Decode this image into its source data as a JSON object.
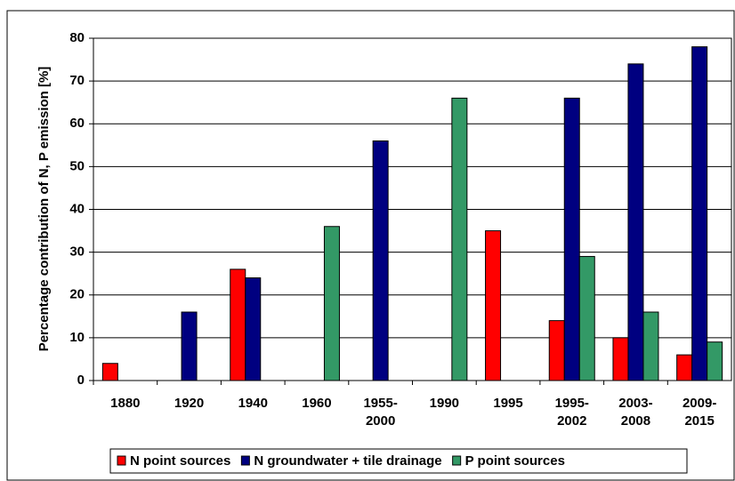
{
  "chart_data": {
    "type": "bar",
    "y_label": "Percentage contribution of N, P emission [%]",
    "categories": [
      "1880",
      "1920",
      "1940",
      "1960",
      "1955-\n2000",
      "1990",
      "1995",
      "1995-\n2002",
      "2003-\n2008",
      "2009-\n2015"
    ],
    "series": [
      {
        "name": "N point sources",
        "color": "#ff0000",
        "values": [
          4,
          null,
          26,
          null,
          null,
          null,
          35,
          14,
          10,
          6
        ]
      },
      {
        "name": "N groundwater + tile drainage",
        "color": "#000080",
        "values": [
          null,
          16,
          24,
          null,
          56,
          null,
          null,
          66,
          74,
          78
        ]
      },
      {
        "name": "P point sources",
        "color": "#339966",
        "values": [
          null,
          null,
          null,
          36,
          null,
          66,
          null,
          29,
          16,
          9
        ]
      }
    ],
    "ylim": [
      0,
      80
    ],
    "yticks": [
      0,
      10,
      20,
      30,
      40,
      50,
      60,
      70,
      80
    ],
    "grid": true,
    "legend": "bottom"
  }
}
